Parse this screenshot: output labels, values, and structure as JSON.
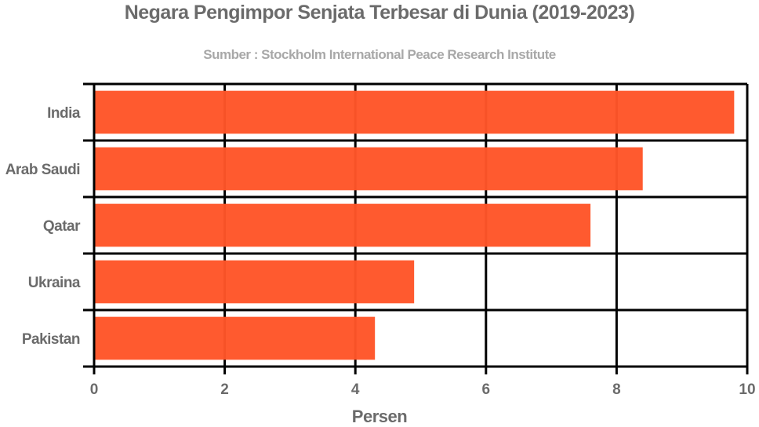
{
  "chart_data": {
    "type": "bar",
    "orientation": "horizontal",
    "title": "Negara Pengimpor Senjata Terbesar di Dunia (2019-2023)",
    "subtitle": "Sumber : Stockholm International Peace Research Institute",
    "xlabel": "Persen",
    "ylabel": "",
    "categories": [
      "India",
      "Arab Saudi",
      "Qatar",
      "Ukraina",
      "Pakistan"
    ],
    "values": [
      9.8,
      8.4,
      7.6,
      4.9,
      4.3
    ],
    "xlim": [
      0,
      10
    ],
    "xticks": [
      "0",
      "2",
      "4",
      "6",
      "8",
      "10"
    ],
    "grid": true,
    "legend": null,
    "bar_color": "#ff5528"
  }
}
